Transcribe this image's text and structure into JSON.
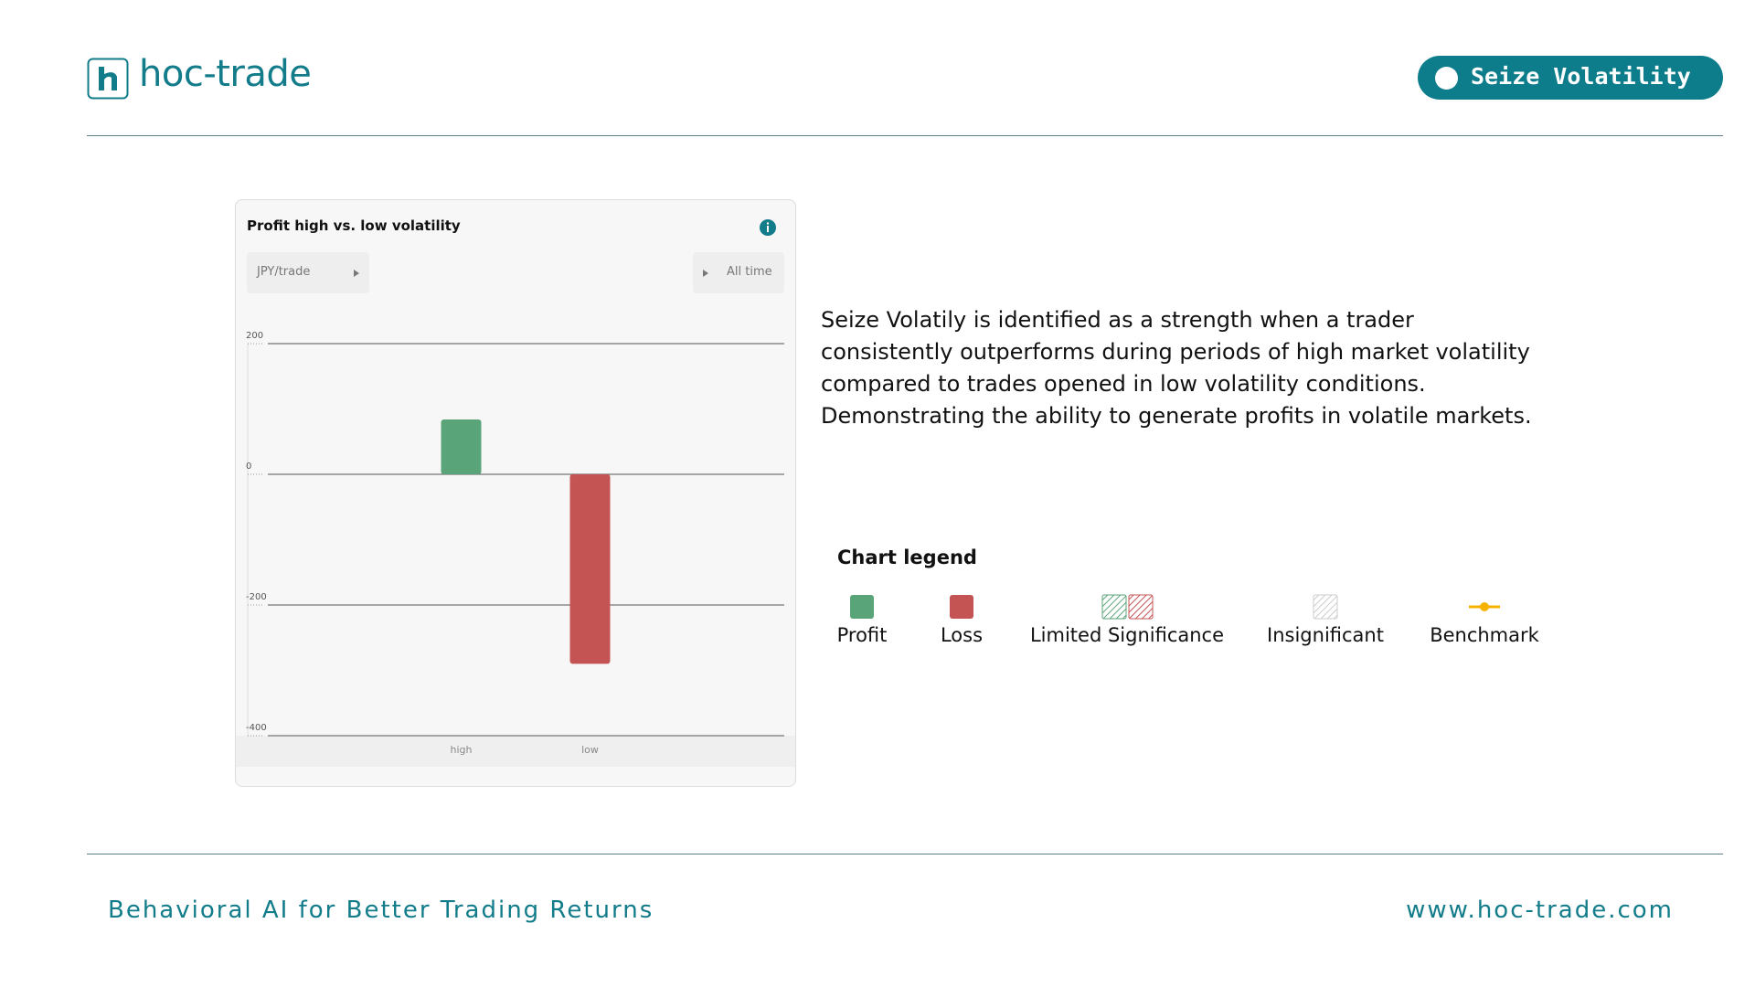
{
  "header": {
    "logo": "hoc-trade",
    "badge": "Seize Volatility"
  },
  "chart_data": {
    "type": "bar",
    "title": "Profit high vs. low volatility",
    "unit_selector": "JPY/trade",
    "period_selector": "All time",
    "categories": [
      "high",
      "low"
    ],
    "values": [
      84,
      -290
    ],
    "colors": [
      "#5aa47a",
      "#c45454"
    ],
    "ylim": [
      -400,
      200
    ],
    "yticks": [
      200,
      0,
      -200,
      -400
    ],
    "grid": true
  },
  "description": "Seize Volatily is identified as a strength when a trader consistently outperforms during periods of high market volatility compared to trades opened in low volatility conditions. Demonstrating the ability to generate profits in volatile markets.",
  "legend": {
    "title": "Chart legend",
    "items": [
      "Profit",
      "Loss",
      "Limited Significance",
      "Insignificant",
      "Benchmark"
    ]
  },
  "footer": {
    "tagline": "Behavioral AI for Better Trading Returns",
    "url": "www.hoc-trade.com"
  }
}
